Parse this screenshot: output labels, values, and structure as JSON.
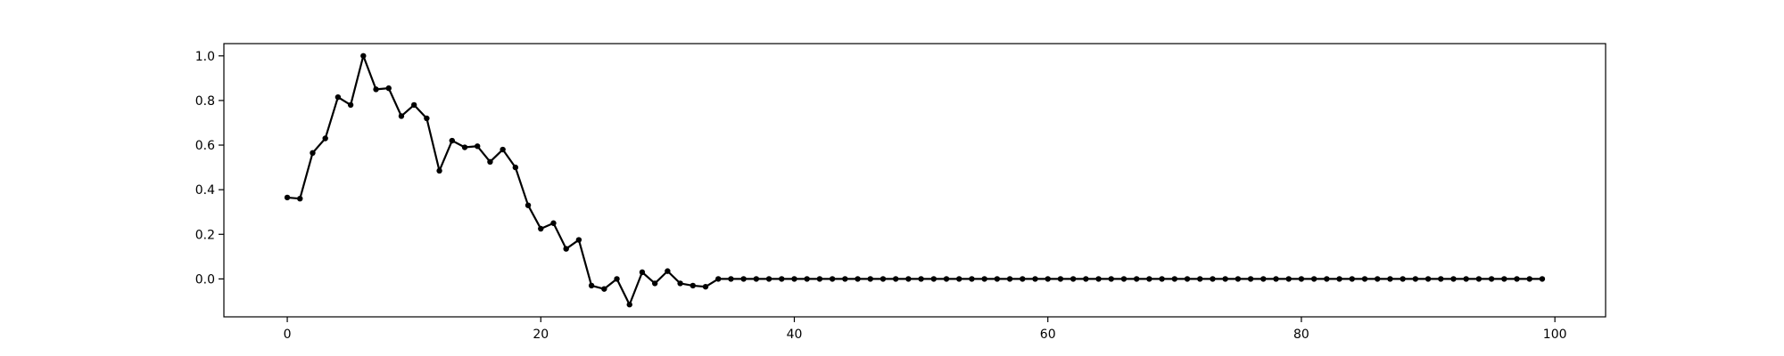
{
  "chart_data": {
    "type": "line",
    "title": "",
    "xlabel": "",
    "ylabel": "",
    "xlim": [
      -5,
      104
    ],
    "ylim": [
      -0.17,
      1.055
    ],
    "xticks": [
      0,
      20,
      40,
      60,
      80,
      100
    ],
    "yticks": [
      0.0,
      0.2,
      0.4,
      0.6,
      0.8,
      1.0
    ],
    "xtick_labels": [
      "0",
      "20",
      "40",
      "60",
      "80",
      "100"
    ],
    "ytick_labels": [
      "0.0",
      "0.2",
      "0.4",
      "0.6",
      "0.8",
      "1.0"
    ],
    "grid": false,
    "legend": "none",
    "series": [
      {
        "color": "#000000",
        "marker": "dot",
        "x": [
          0,
          1,
          2,
          3,
          4,
          5,
          6,
          7,
          8,
          9,
          10,
          11,
          12,
          13,
          14,
          15,
          16,
          17,
          18,
          19,
          20,
          21,
          22,
          23,
          24,
          25,
          26,
          27,
          28,
          29,
          30,
          31,
          32,
          33,
          34,
          35,
          36,
          37,
          38,
          39,
          40,
          41,
          42,
          43,
          44,
          45,
          46,
          47,
          48,
          49,
          50,
          51,
          52,
          53,
          54,
          55,
          56,
          57,
          58,
          59,
          60,
          61,
          62,
          63,
          64,
          65,
          66,
          67,
          68,
          69,
          70,
          71,
          72,
          73,
          74,
          75,
          76,
          77,
          78,
          79,
          80,
          81,
          82,
          83,
          84,
          85,
          86,
          87,
          88,
          89,
          90,
          91,
          92,
          93,
          94,
          95,
          96,
          97,
          98,
          99
        ],
        "values": [
          0.365,
          0.36,
          0.565,
          0.63,
          0.815,
          0.78,
          1.0,
          0.85,
          0.855,
          0.73,
          0.78,
          0.72,
          0.485,
          0.62,
          0.59,
          0.595,
          0.525,
          0.58,
          0.5,
          0.33,
          0.225,
          0.25,
          0.135,
          0.175,
          -0.03,
          -0.045,
          0.0,
          -0.115,
          0.03,
          -0.02,
          0.035,
          -0.02,
          -0.03,
          -0.035,
          0.0,
          0,
          0,
          0,
          0,
          0,
          0,
          0,
          0,
          0,
          0,
          0,
          0,
          0,
          0,
          0,
          0,
          0,
          0,
          0,
          0,
          0,
          0,
          0,
          0,
          0,
          0,
          0,
          0,
          0,
          0,
          0,
          0,
          0,
          0,
          0,
          0,
          0,
          0,
          0,
          0,
          0,
          0,
          0,
          0,
          0,
          0,
          0,
          0,
          0,
          0,
          0,
          0,
          0,
          0,
          0,
          0,
          0,
          0,
          0,
          0,
          0,
          0,
          0,
          0,
          0
        ]
      }
    ]
  }
}
